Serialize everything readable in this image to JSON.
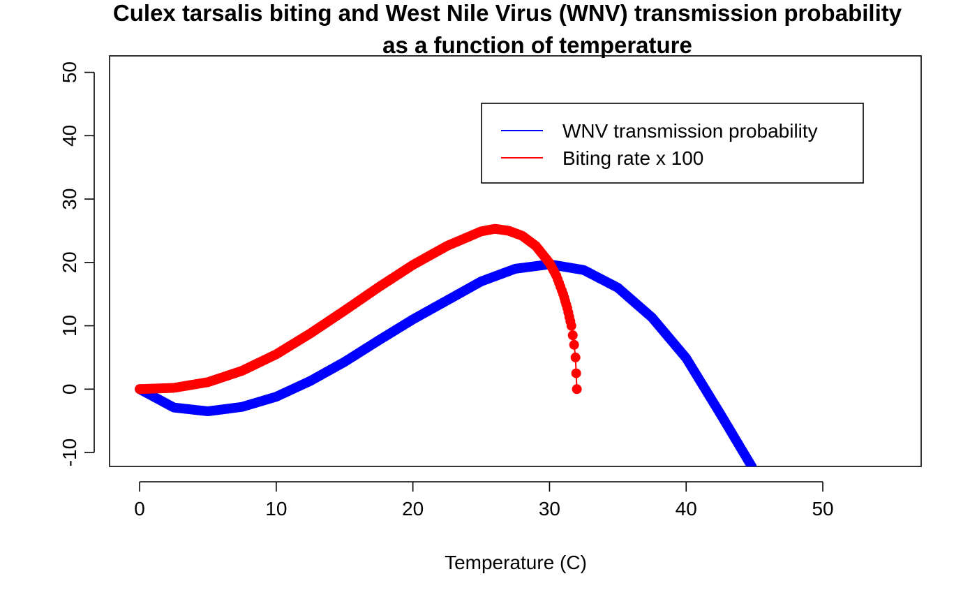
{
  "chart_data": {
    "type": "scatter",
    "title_lines": [
      "Culex tarsalis biting and West Nile Virus (WNV) transmission probability",
      "as a function of temperature"
    ],
    "xlabel": "Temperature (C)",
    "ylabel": "",
    "xlim": [
      -2.2,
      57.2
    ],
    "ylim": [
      -12.2,
      52.6
    ],
    "x_ticks": [
      0,
      10,
      20,
      30,
      40,
      50
    ],
    "y_ticks": [
      -10,
      0,
      10,
      20,
      30,
      40,
      50
    ],
    "x_tick_labels": [
      "0",
      "10",
      "20",
      "30",
      "40",
      "50"
    ],
    "y_tick_labels": [
      "-10",
      "0",
      "10",
      "20",
      "30",
      "40",
      "50"
    ],
    "grid": false,
    "legend": {
      "placement": "top-right",
      "entries": [
        {
          "label": "WNV transmission probability",
          "color": "#0000ff"
        },
        {
          "label": "Biting rate x 100",
          "color": "#ff0000"
        }
      ]
    },
    "series": [
      {
        "name": "WNV transmission probability",
        "color": "#0000ff",
        "x": [
          0,
          2.5,
          5,
          7.5,
          10,
          12.5,
          15,
          17.5,
          20,
          22.5,
          25,
          27.5,
          30,
          32.5,
          35,
          37.5,
          40,
          42.5,
          44.8
        ],
        "y": [
          0,
          -2.9,
          -3.5,
          -2.8,
          -1.2,
          1.3,
          4.3,
          7.7,
          11.0,
          14.0,
          17.0,
          19.0,
          19.7,
          18.8,
          16.0,
          11.3,
          4.9,
          -3.9,
          -12.2
        ]
      },
      {
        "name": "Biting rate x 100",
        "color": "#ff0000",
        "x": [
          0,
          2.5,
          5,
          7.5,
          10,
          12.5,
          15,
          17.5,
          20,
          22.5,
          25,
          26,
          27,
          28,
          29,
          30,
          30.5,
          31,
          31.3,
          31.6,
          31.8,
          31.9,
          32
        ],
        "y": [
          0,
          0.2,
          1.1,
          2.9,
          5.5,
          8.8,
          12.4,
          16.1,
          19.6,
          22.6,
          24.9,
          25.3,
          25.0,
          24.2,
          22.6,
          19.9,
          17.9,
          15.0,
          12.8,
          10.0,
          7.0,
          5.0,
          0
        ]
      }
    ]
  }
}
